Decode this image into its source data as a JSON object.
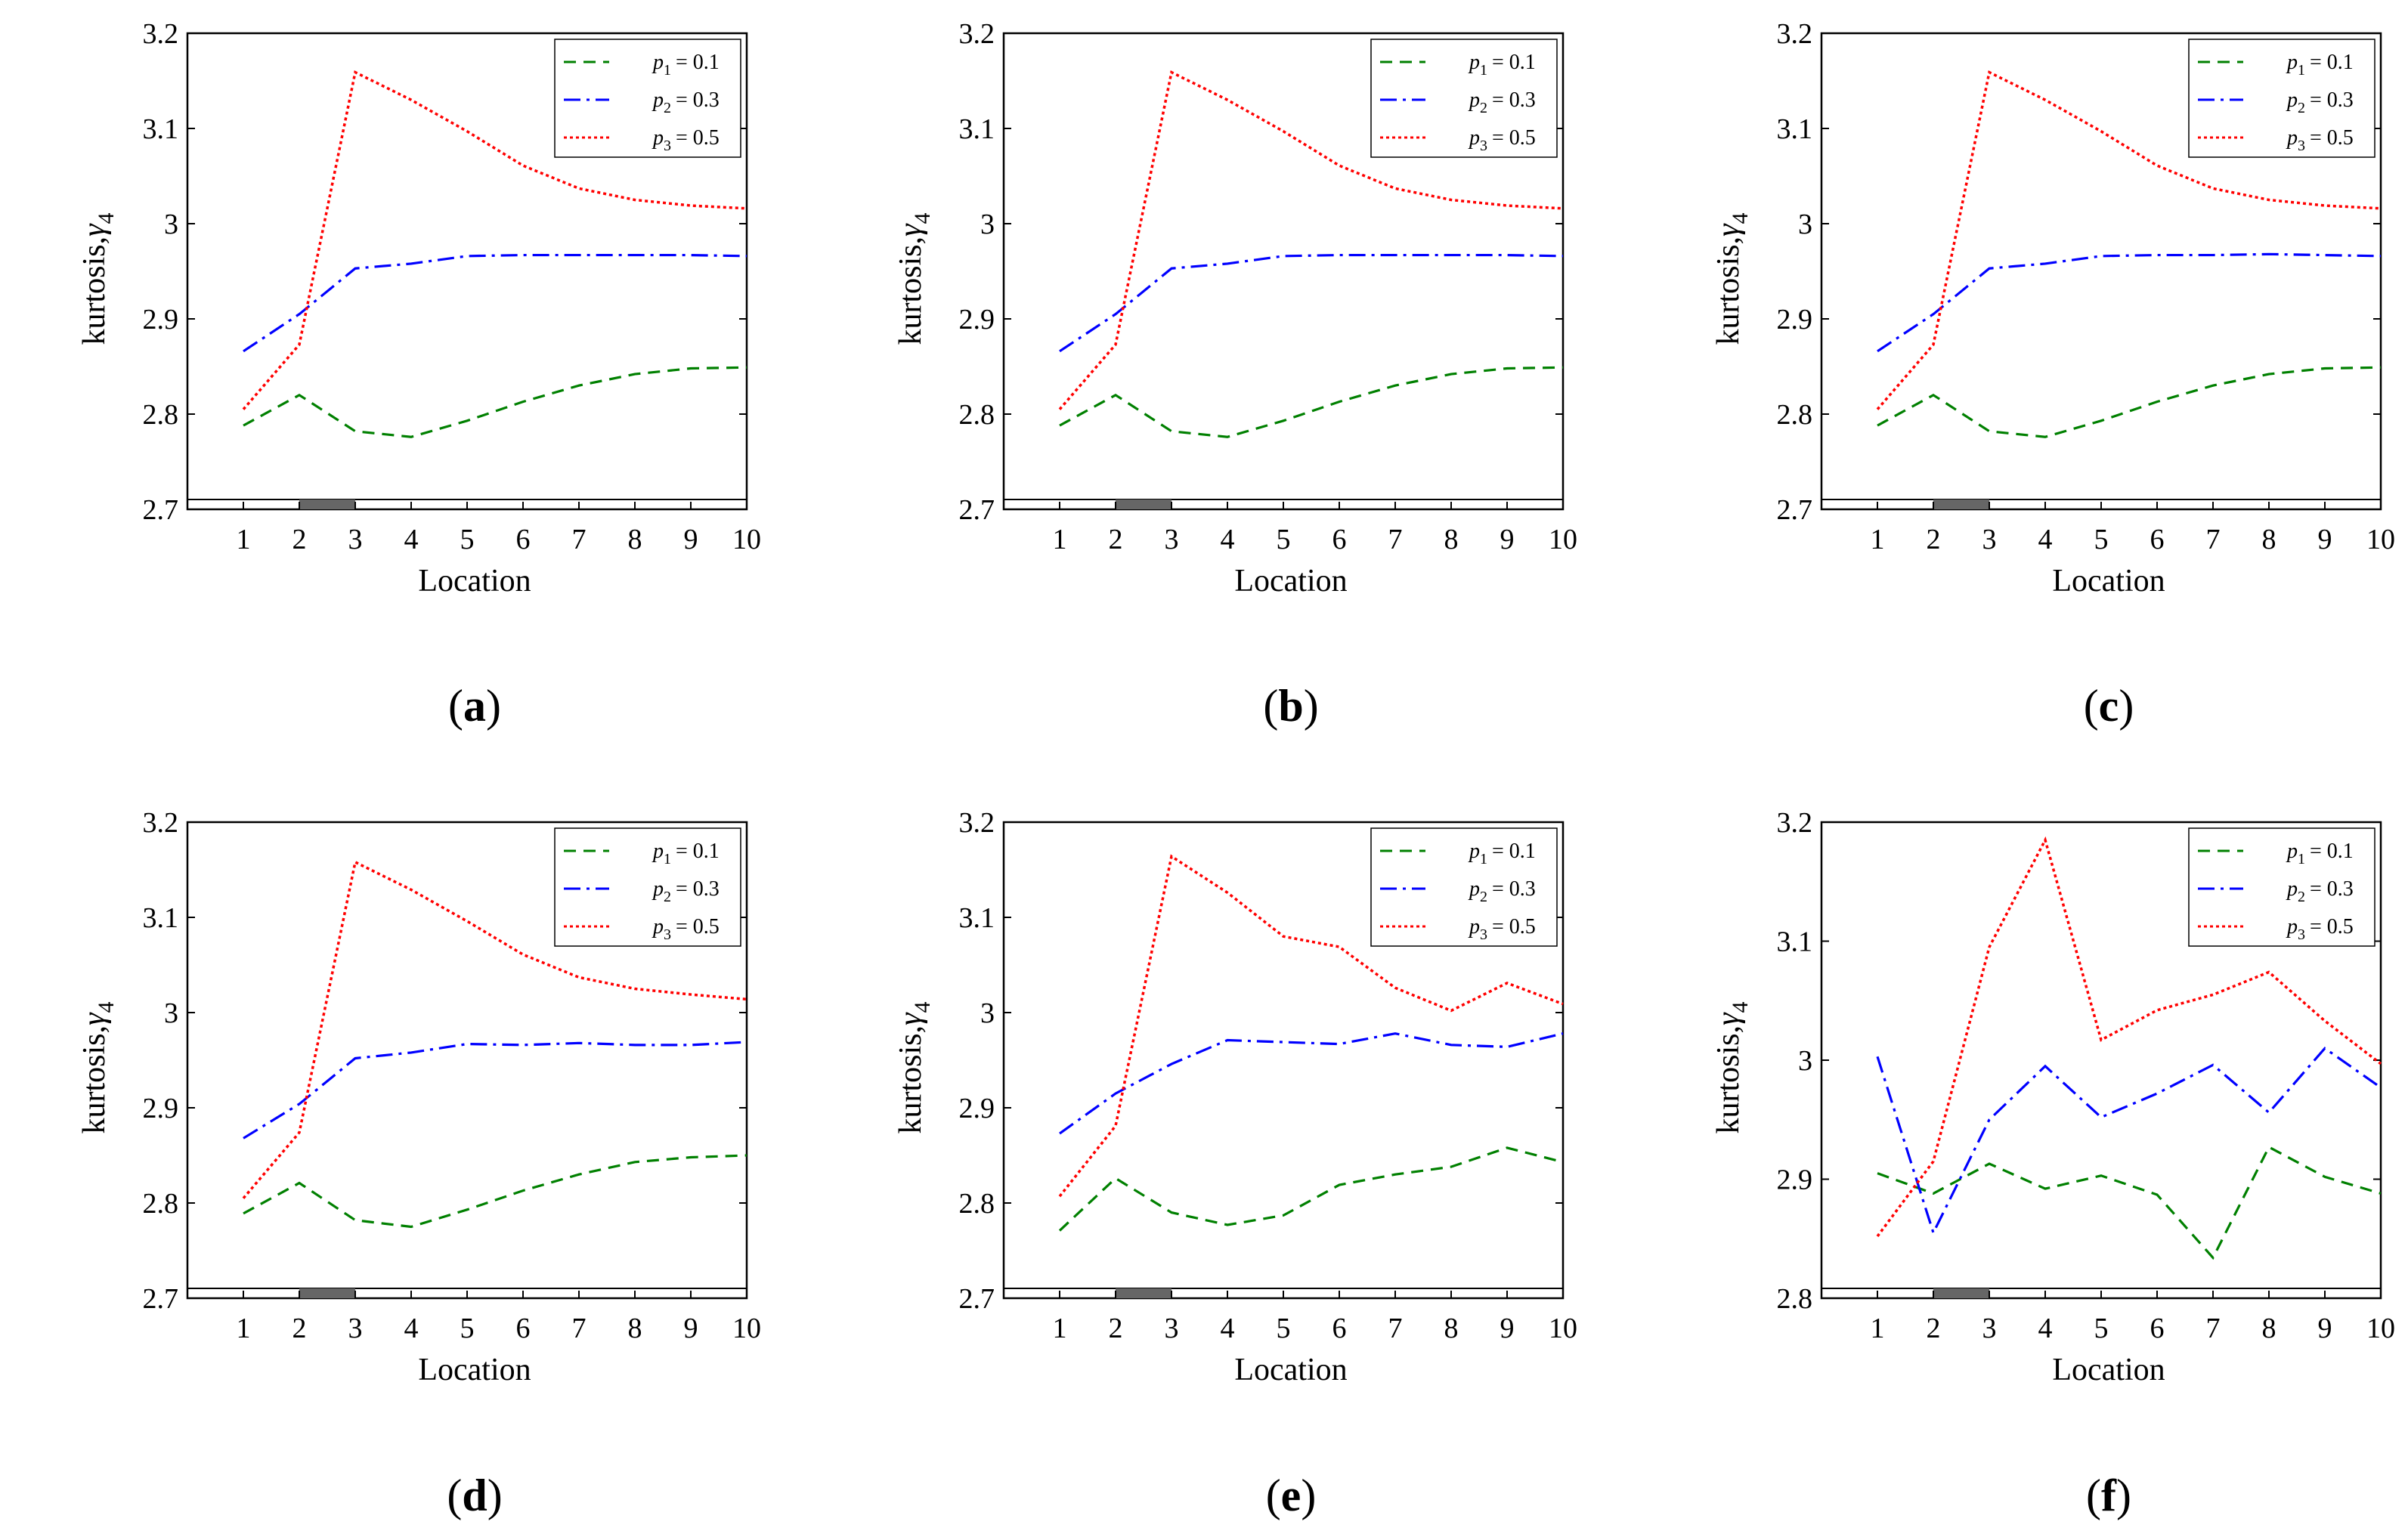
{
  "chart_data": [
    {
      "type": "line",
      "caption": "a",
      "xlabel": "Location",
      "ylabel_main": "kurtosis,",
      "ylabel_symbol": "γ",
      "ylabel_sub": "4",
      "x": [
        1,
        2,
        3,
        4,
        5,
        6,
        7,
        8,
        9,
        10
      ],
      "xlim": [
        0,
        10
      ],
      "ylim": [
        2.7,
        3.2
      ],
      "yticks": [
        "2.7",
        "2.8",
        "2.9",
        "3",
        "3.1",
        "3.2"
      ],
      "xticks": [
        "1",
        "2",
        "3",
        "4",
        "5",
        "6",
        "7",
        "8",
        "9",
        "10"
      ],
      "legend_position": "top-right",
      "series": [
        {
          "name": "p1",
          "label_var": "p",
          "label_sub": "1",
          "label_val": "= 0.1",
          "color": "#008000",
          "style": "dashed",
          "values": [
            2.788,
            2.82,
            2.782,
            2.776,
            2.793,
            2.813,
            2.83,
            2.842,
            2.848,
            2.849
          ]
        },
        {
          "name": "p2",
          "label_var": "p",
          "label_sub": "2",
          "label_val": "= 0.3",
          "color": "#0000ff",
          "style": "dashdot",
          "values": [
            2.866,
            2.905,
            2.953,
            2.958,
            2.966,
            2.967,
            2.967,
            2.967,
            2.967,
            2.966
          ]
        },
        {
          "name": "p3",
          "label_var": "p",
          "label_sub": "3",
          "label_val": "= 0.5",
          "color": "#ff0000",
          "style": "dotted",
          "values": [
            2.805,
            2.873,
            3.159,
            3.13,
            3.097,
            3.061,
            3.037,
            3.025,
            3.019,
            3.016
          ]
        }
      ]
    },
    {
      "type": "line",
      "caption": "b",
      "xlabel": "Location",
      "ylabel_main": "kurtosis,",
      "ylabel_symbol": "γ",
      "ylabel_sub": "4",
      "x": [
        1,
        2,
        3,
        4,
        5,
        6,
        7,
        8,
        9,
        10
      ],
      "xlim": [
        0,
        10
      ],
      "ylim": [
        2.7,
        3.2
      ],
      "yticks": [
        "2.7",
        "2.8",
        "2.9",
        "3",
        "3.1",
        "3.2"
      ],
      "xticks": [
        "1",
        "2",
        "3",
        "4",
        "5",
        "6",
        "7",
        "8",
        "9",
        "10"
      ],
      "legend_position": "top-right",
      "series": [
        {
          "name": "p1",
          "label_var": "p",
          "label_sub": "1",
          "label_val": "= 0.1",
          "color": "#008000",
          "style": "dashed",
          "values": [
            2.788,
            2.82,
            2.782,
            2.776,
            2.793,
            2.813,
            2.83,
            2.842,
            2.848,
            2.849
          ]
        },
        {
          "name": "p2",
          "label_var": "p",
          "label_sub": "2",
          "label_val": "= 0.3",
          "color": "#0000ff",
          "style": "dashdot",
          "values": [
            2.866,
            2.905,
            2.953,
            2.958,
            2.966,
            2.967,
            2.967,
            2.967,
            2.967,
            2.966
          ]
        },
        {
          "name": "p3",
          "label_var": "p",
          "label_sub": "3",
          "label_val": "= 0.5",
          "color": "#ff0000",
          "style": "dotted",
          "values": [
            2.805,
            2.873,
            3.159,
            3.13,
            3.097,
            3.061,
            3.037,
            3.025,
            3.019,
            3.016
          ]
        }
      ]
    },
    {
      "type": "line",
      "caption": "c",
      "xlabel": "Location",
      "ylabel_main": "kurtosis,",
      "ylabel_symbol": "γ",
      "ylabel_sub": "4",
      "x": [
        1,
        2,
        3,
        4,
        5,
        6,
        7,
        8,
        9,
        10
      ],
      "xlim": [
        0,
        10
      ],
      "ylim": [
        2.7,
        3.2
      ],
      "yticks": [
        "2.7",
        "2.8",
        "2.9",
        "3",
        "3.1",
        "3.2"
      ],
      "xticks": [
        "1",
        "2",
        "3",
        "4",
        "5",
        "6",
        "7",
        "8",
        "9",
        "10"
      ],
      "legend_position": "top-right",
      "series": [
        {
          "name": "p1",
          "label_var": "p",
          "label_sub": "1",
          "label_val": "= 0.1",
          "color": "#008000",
          "style": "dashed",
          "values": [
            2.788,
            2.82,
            2.782,
            2.776,
            2.793,
            2.813,
            2.83,
            2.842,
            2.848,
            2.849
          ]
        },
        {
          "name": "p2",
          "label_var": "p",
          "label_sub": "2",
          "label_val": "= 0.3",
          "color": "#0000ff",
          "style": "dashdot",
          "values": [
            2.866,
            2.905,
            2.953,
            2.958,
            2.966,
            2.967,
            2.967,
            2.968,
            2.967,
            2.966
          ]
        },
        {
          "name": "p3",
          "label_var": "p",
          "label_sub": "3",
          "label_val": "= 0.5",
          "color": "#ff0000",
          "style": "dotted",
          "values": [
            2.805,
            2.873,
            3.159,
            3.13,
            3.097,
            3.061,
            3.037,
            3.025,
            3.019,
            3.016
          ]
        }
      ]
    },
    {
      "type": "line",
      "caption": "d",
      "xlabel": "Location",
      "ylabel_main": "kurtosis,",
      "ylabel_symbol": "γ",
      "ylabel_sub": "4",
      "x": [
        1,
        2,
        3,
        4,
        5,
        6,
        7,
        8,
        9,
        10
      ],
      "xlim": [
        0,
        10
      ],
      "ylim": [
        2.7,
        3.2
      ],
      "yticks": [
        "2.7",
        "2.8",
        "2.9",
        "3",
        "3.1",
        "3.2"
      ],
      "xticks": [
        "1",
        "2",
        "3",
        "4",
        "5",
        "6",
        "7",
        "8",
        "9",
        "10"
      ],
      "legend_position": "top-right",
      "series": [
        {
          "name": "p1",
          "label_var": "p",
          "label_sub": "1",
          "label_val": "= 0.1",
          "color": "#008000",
          "style": "dashed",
          "values": [
            2.789,
            2.821,
            2.782,
            2.775,
            2.793,
            2.813,
            2.83,
            2.843,
            2.848,
            2.85
          ]
        },
        {
          "name": "p2",
          "label_var": "p",
          "label_sub": "2",
          "label_val": "= 0.3",
          "color": "#0000ff",
          "style": "dashdot",
          "values": [
            2.868,
            2.904,
            2.952,
            2.958,
            2.967,
            2.966,
            2.968,
            2.966,
            2.966,
            2.969
          ]
        },
        {
          "name": "p3",
          "label_var": "p",
          "label_sub": "3",
          "label_val": "= 0.5",
          "color": "#ff0000",
          "style": "dotted",
          "values": [
            2.805,
            2.874,
            3.158,
            3.129,
            3.096,
            3.061,
            3.037,
            3.025,
            3.019,
            3.014
          ]
        }
      ]
    },
    {
      "type": "line",
      "caption": "e",
      "xlabel": "Location",
      "ylabel_main": "kurtosis,",
      "ylabel_symbol": "γ",
      "ylabel_sub": "4",
      "x": [
        1,
        2,
        3,
        4,
        5,
        6,
        7,
        8,
        9,
        10
      ],
      "xlim": [
        0,
        10
      ],
      "ylim": [
        2.7,
        3.2
      ],
      "yticks": [
        "2.7",
        "2.8",
        "2.9",
        "3",
        "3.1",
        "3.2"
      ],
      "xticks": [
        "1",
        "2",
        "3",
        "4",
        "5",
        "6",
        "7",
        "8",
        "9",
        "10"
      ],
      "legend_position": "top-right",
      "series": [
        {
          "name": "p1",
          "label_var": "p",
          "label_sub": "1",
          "label_val": "= 0.1",
          "color": "#008000",
          "style": "dashed",
          "values": [
            2.771,
            2.826,
            2.79,
            2.777,
            2.787,
            2.819,
            2.83,
            2.838,
            2.858,
            2.843
          ]
        },
        {
          "name": "p2",
          "label_var": "p",
          "label_sub": "2",
          "label_val": "= 0.3",
          "color": "#0000ff",
          "style": "dashdot",
          "values": [
            2.873,
            2.915,
            2.946,
            2.971,
            2.969,
            2.967,
            2.978,
            2.966,
            2.964,
            2.978
          ]
        },
        {
          "name": "p3",
          "label_var": "p",
          "label_sub": "3",
          "label_val": "= 0.5",
          "color": "#ff0000",
          "style": "dotted",
          "values": [
            2.807,
            2.881,
            3.164,
            3.126,
            3.08,
            3.069,
            3.026,
            3.002,
            3.031,
            3.009
          ]
        }
      ]
    },
    {
      "type": "line",
      "caption": "f",
      "xlabel": "Location",
      "ylabel_main": "kurtosis,",
      "ylabel_symbol": "γ",
      "ylabel_sub": "4",
      "x": [
        1,
        2,
        3,
        4,
        5,
        6,
        7,
        8,
        9,
        10
      ],
      "xlim": [
        0,
        10
      ],
      "ylim": [
        2.8,
        3.2
      ],
      "yticks": [
        "2.8",
        "2.9",
        "3",
        "3.1",
        "3.2"
      ],
      "xticks": [
        "1",
        "2",
        "3",
        "4",
        "5",
        "6",
        "7",
        "8",
        "9",
        "10"
      ],
      "legend_position": "top-right",
      "series": [
        {
          "name": "p1",
          "label_var": "p",
          "label_sub": "1",
          "label_val": "= 0.1",
          "color": "#008000",
          "style": "dashed",
          "values": [
            2.905,
            2.888,
            2.913,
            2.892,
            2.903,
            2.887,
            2.834,
            2.927,
            2.902,
            2.888
          ]
        },
        {
          "name": "p2",
          "label_var": "p",
          "label_sub": "2",
          "label_val": "= 0.3",
          "color": "#0000ff",
          "style": "dashdot",
          "values": [
            3.003,
            2.855,
            2.95,
            2.995,
            2.952,
            2.972,
            2.996,
            2.956,
            3.01,
            2.977
          ]
        },
        {
          "name": "p3",
          "label_var": "p",
          "label_sub": "3",
          "label_val": "= 0.5",
          "color": "#ff0000",
          "style": "dotted",
          "values": [
            2.852,
            2.915,
            3.095,
            3.185,
            3.017,
            3.042,
            3.055,
            3.074,
            3.033,
            2.997
          ]
        }
      ]
    }
  ],
  "highlight_segment": {
    "from": 2,
    "to": 3,
    "color": "#666666"
  }
}
